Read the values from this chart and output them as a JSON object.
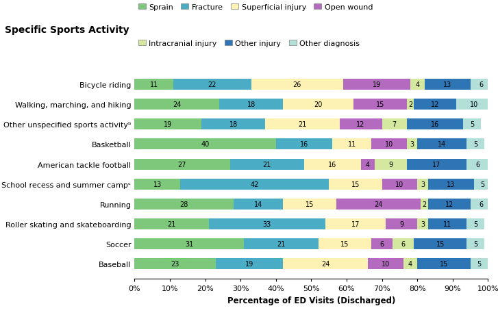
{
  "title": "Specific Sports Activity",
  "xlabel": "Percentage of ED Visits (Discharged)",
  "categories": [
    "Bicycle riding",
    "Walking, marching, and hiking",
    "Other unspecified sports activityᵇ",
    "Basketball",
    "American tackle football",
    "School recess and summer campᶜ",
    "Running",
    "Roller skating and skateboarding",
    "Soccer",
    "Baseball"
  ],
  "series": {
    "Sprain": [
      11,
      24,
      19,
      40,
      27,
      13,
      28,
      21,
      31,
      23
    ],
    "Fracture": [
      22,
      18,
      18,
      16,
      21,
      42,
      14,
      33,
      21,
      19
    ],
    "Superficial injury": [
      26,
      20,
      21,
      11,
      16,
      15,
      15,
      17,
      15,
      24
    ],
    "Open wound": [
      19,
      15,
      12,
      10,
      4,
      10,
      24,
      9,
      6,
      10
    ],
    "Intracranial injury": [
      4,
      2,
      7,
      3,
      9,
      3,
      2,
      3,
      6,
      4
    ],
    "Other injury": [
      13,
      12,
      16,
      14,
      17,
      13,
      12,
      11,
      15,
      15
    ],
    "Other diagnosis": [
      6,
      10,
      5,
      5,
      6,
      5,
      6,
      5,
      5,
      5
    ]
  },
  "colors": {
    "Sprain": "#7dc87a",
    "Fracture": "#4bacc6",
    "Superficial injury": "#fdf2b3",
    "Open wound": "#b36abf",
    "Intracranial injury": "#d5e8a0",
    "Other injury": "#2e75b6",
    "Other diagnosis": "#b2e0d8"
  },
  "series_order": [
    "Sprain",
    "Fracture",
    "Superficial injury",
    "Open wound",
    "Intracranial injury",
    "Other injury",
    "Other diagnosis"
  ],
  "bar_height": 0.55,
  "title_fontsize": 10,
  "label_fontsize": 8.5,
  "tick_fontsize": 8,
  "legend_fontsize": 8,
  "annotation_fontsize": 7
}
